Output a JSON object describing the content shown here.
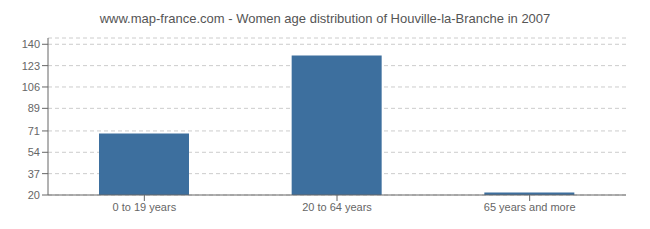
{
  "chart_data": {
    "type": "bar",
    "title": "www.map-france.com - Women age distribution of Houville-la-Branche in 2007",
    "categories": [
      "0 to 19 years",
      "20 to 64 years",
      "65 years and more"
    ],
    "values": [
      69,
      131,
      22
    ],
    "color": "#3d6f9e",
    "ylim": [
      20,
      145
    ],
    "yticks": [
      20,
      37,
      54,
      71,
      89,
      106,
      123,
      140
    ],
    "grid": true
  }
}
